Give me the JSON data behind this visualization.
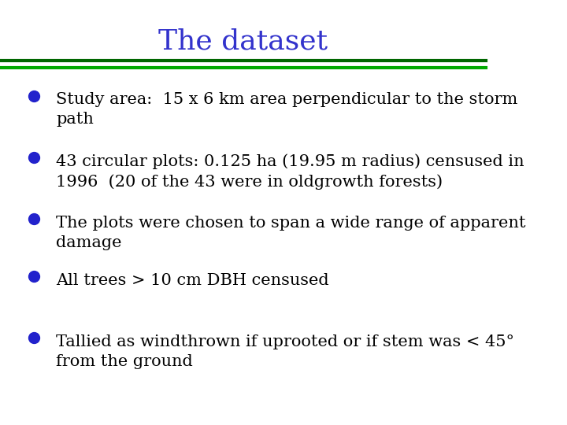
{
  "title": "The dataset",
  "title_color": "#3333cc",
  "title_fontsize": 26,
  "title_font": "serif",
  "background_color": "#ffffff",
  "line1_color": "#006600",
  "line2_color": "#00aa00",
  "bullet_color": "#2222cc",
  "text_color": "#000000",
  "bullet_points": [
    "Study area:  15 x 6 km area perpendicular to the storm\npath",
    "43 circular plots: 0.125 ha (19.95 m radius) censused in\n1996  (20 of the 43 were in oldgrowth forests)",
    "The plots were chosen to span a wide range of apparent\ndamage",
    "All trees > 10 cm DBH censused",
    "Tallied as windthrown if uprooted or if stem was < 45°\nfrom the ground"
  ],
  "text_fontsize": 15,
  "text_font": "serif"
}
